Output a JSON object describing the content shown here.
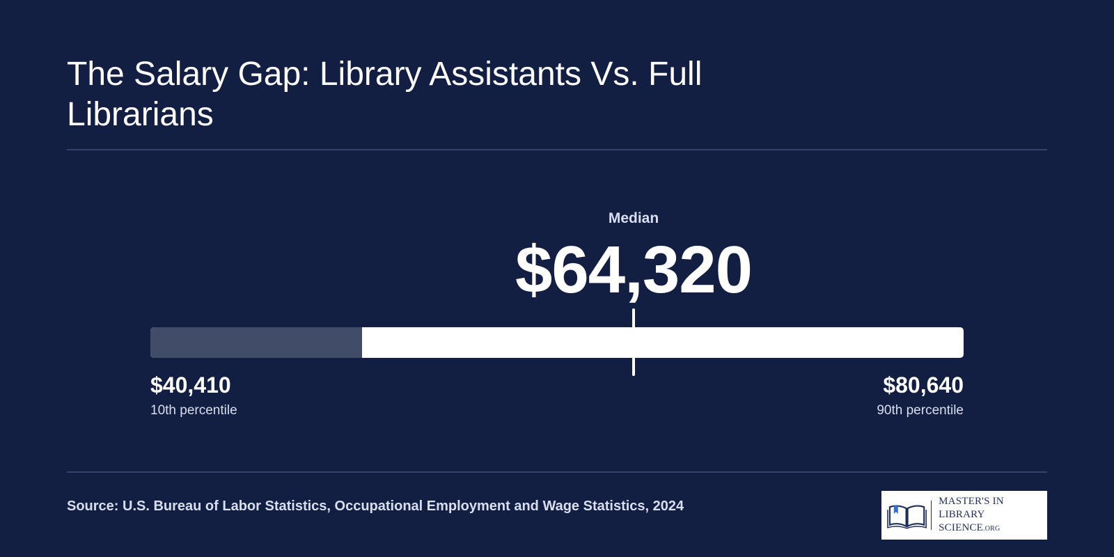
{
  "title": "The Salary Gap: Library Assistants Vs. Full Librarians",
  "chart_data": {
    "type": "range",
    "min": 40410,
    "median": 64320,
    "max": 80640,
    "min_display": "$40,410",
    "median_display": "$64,320",
    "max_display": "$80,640",
    "min_label": "10th percentile",
    "median_label": "Median",
    "max_label": "90th percentile",
    "low_segment_fraction": 0.26
  },
  "source": "Source: U.S. Bureau of Labor Statistics, Occupational Employment and Wage Statistics, 2024",
  "logo": {
    "line1": "MASTER'S IN",
    "line2": "LIBRARY SCIENCE",
    "line2_suffix": ".ORG",
    "icon": "open-book-icon"
  },
  "colors": {
    "background": "#121f43",
    "bar": "#ffffff",
    "bar_low": "#414c69",
    "rule": "#34426a"
  }
}
